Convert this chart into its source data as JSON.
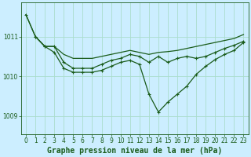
{
  "background_color": "#cceeff",
  "grid_color": "#aaddcc",
  "line_color": "#1a5c1a",
  "title": "Graphe pression niveau de la mer (hPa)",
  "xlim": [
    -0.5,
    23.5
  ],
  "ylim": [
    1008.55,
    1011.85
  ],
  "yticks": [
    1009,
    1010,
    1011
  ],
  "xticks": [
    0,
    1,
    2,
    3,
    4,
    5,
    6,
    7,
    8,
    9,
    10,
    11,
    12,
    13,
    14,
    15,
    16,
    17,
    18,
    19,
    20,
    21,
    22,
    23
  ],
  "series1_x": [
    0,
    1,
    2,
    3,
    4,
    5,
    6,
    7,
    8,
    9,
    10,
    11,
    12,
    13,
    14,
    15,
    16,
    17,
    18,
    19,
    20,
    21,
    22,
    23
  ],
  "series1_y": [
    1011.55,
    1011.0,
    1010.75,
    1010.75,
    1010.55,
    1010.45,
    1010.45,
    1010.45,
    1010.5,
    1010.55,
    1010.6,
    1010.65,
    1010.6,
    1010.55,
    1010.6,
    1010.62,
    1010.65,
    1010.7,
    1010.75,
    1010.8,
    1010.85,
    1010.9,
    1010.95,
    1011.05
  ],
  "series2_x": [
    0,
    1,
    2,
    3,
    4,
    5,
    6,
    7,
    8,
    9,
    10,
    11,
    12,
    13,
    14,
    15,
    16,
    17,
    18,
    19,
    20,
    21,
    22,
    23
  ],
  "series2_y": [
    1011.55,
    1011.0,
    1010.75,
    1010.75,
    1010.35,
    1010.2,
    1010.2,
    1010.2,
    1010.3,
    1010.4,
    1010.45,
    1010.55,
    1010.5,
    1010.35,
    1010.5,
    1010.35,
    1010.45,
    1010.5,
    1010.45,
    1010.5,
    1010.6,
    1010.7,
    1010.78,
    1010.88
  ],
  "series3_x": [
    1,
    2,
    3,
    4,
    5,
    6,
    7,
    8,
    9,
    10,
    11,
    12,
    13,
    14,
    15,
    16,
    17,
    18,
    19,
    20,
    21,
    22,
    23
  ],
  "series3_y": [
    1011.0,
    1010.75,
    1010.6,
    1010.2,
    1010.1,
    1010.1,
    1010.1,
    1010.15,
    1010.25,
    1010.35,
    1010.4,
    1010.3,
    1009.55,
    1009.1,
    1009.35,
    1009.55,
    1009.75,
    1010.05,
    1010.25,
    1010.42,
    1010.55,
    1010.65,
    1010.85
  ],
  "title_fontsize": 7,
  "tick_fontsize": 5.5,
  "linewidth": 0.9,
  "markersize": 3.0
}
